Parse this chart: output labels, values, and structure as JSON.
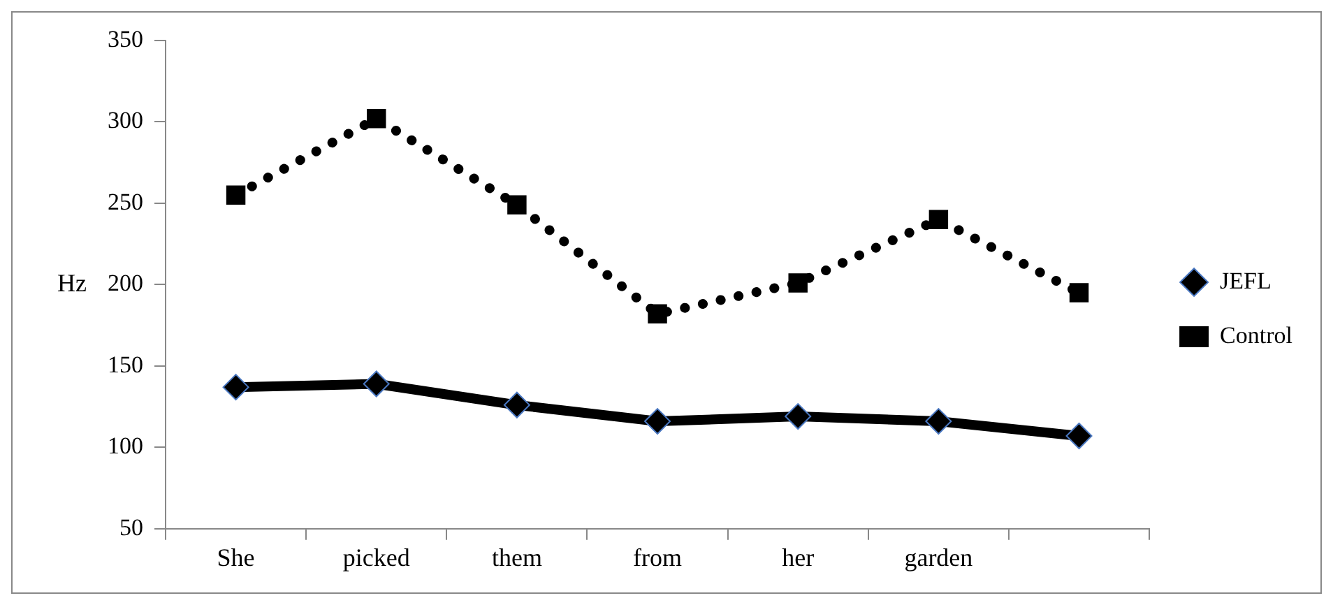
{
  "chart_data": {
    "type": "line",
    "ylabel": "Hz",
    "categories": [
      "She",
      "picked",
      "them",
      "from",
      "her",
      "garden",
      null
    ],
    "ylim": [
      50,
      350
    ],
    "yticks": [
      50,
      100,
      150,
      200,
      250,
      300,
      350
    ],
    "grid": false,
    "legend": "right",
    "series": [
      {
        "name": "JEFL",
        "color": "#000000",
        "marker": "diamond",
        "line_style": "solid",
        "values": [
          137,
          139,
          126,
          116,
          119,
          116,
          107
        ]
      },
      {
        "name": "Control",
        "color": "#000000",
        "marker": "square",
        "line_style": "dotted",
        "values": [
          255,
          302,
          249,
          182,
          201,
          240,
          195
        ]
      }
    ]
  }
}
